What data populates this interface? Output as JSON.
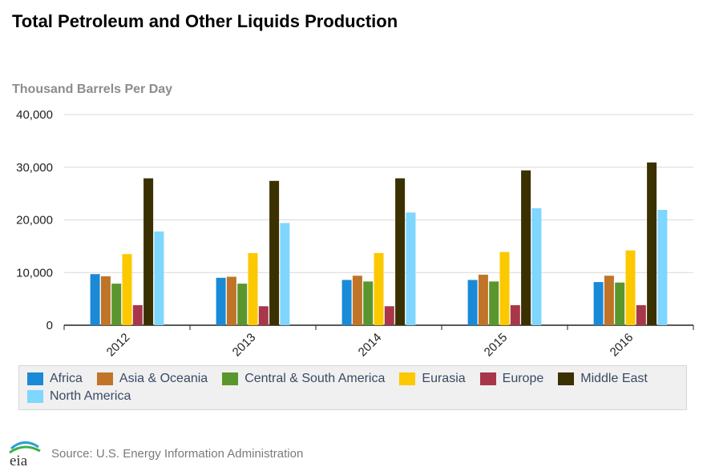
{
  "chart_data": {
    "type": "bar",
    "title": "Total Petroleum and Other Liquids Production",
    "ylabel": "Thousand Barrels Per Day",
    "xlabel": "",
    "ylim": [
      0,
      40000
    ],
    "yticks": [
      0,
      10000,
      20000,
      30000,
      40000
    ],
    "ytick_labels": [
      "0",
      "10,000",
      "20,000",
      "30,000",
      "40,000"
    ],
    "categories": [
      "2012",
      "2013",
      "2014",
      "2015",
      "2016"
    ],
    "grid": true,
    "legend_position": "bottom",
    "series": [
      {
        "name": "Africa",
        "color": "#1a8ad6",
        "values": [
          9700,
          9000,
          8600,
          8600,
          8200
        ]
      },
      {
        "name": "Asia & Oceania",
        "color": "#c07428",
        "values": [
          9300,
          9200,
          9400,
          9600,
          9400
        ]
      },
      {
        "name": "Central & South America",
        "color": "#5a962e",
        "values": [
          7900,
          7900,
          8300,
          8300,
          8100
        ]
      },
      {
        "name": "Eurasia",
        "color": "#fcc800",
        "values": [
          13500,
          13700,
          13700,
          13900,
          14200
        ]
      },
      {
        "name": "Europe",
        "color": "#a8374a",
        "values": [
          3800,
          3600,
          3600,
          3800,
          3800
        ]
      },
      {
        "name": "Middle East",
        "color": "#3b3000",
        "values": [
          27900,
          27400,
          27900,
          29400,
          30900
        ]
      },
      {
        "name": "North America",
        "color": "#7fd6ff",
        "values": [
          17800,
          19400,
          21400,
          22200,
          21900
        ]
      }
    ]
  },
  "footer": {
    "logo_text": "eia",
    "source": "Source: U.S. Energy Information Administration"
  }
}
